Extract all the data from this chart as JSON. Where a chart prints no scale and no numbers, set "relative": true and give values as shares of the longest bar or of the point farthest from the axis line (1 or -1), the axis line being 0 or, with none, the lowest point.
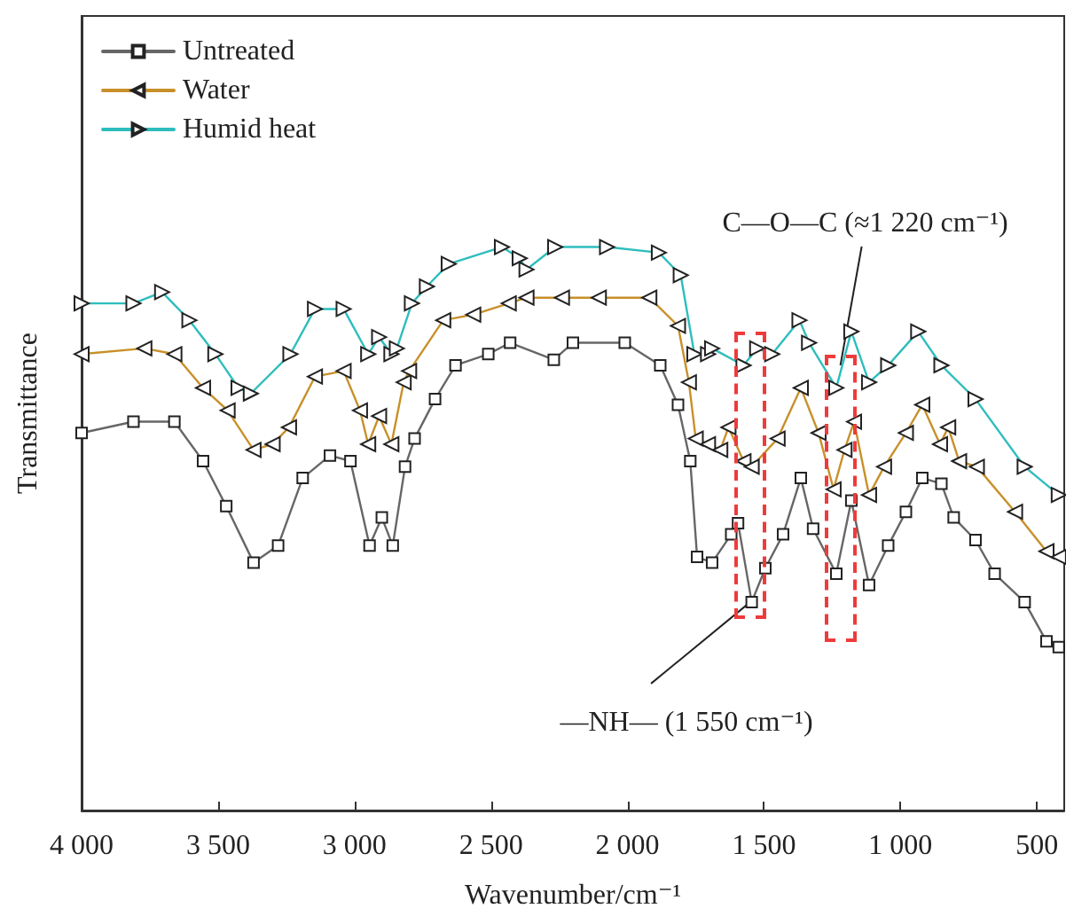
{
  "chart_data": {
    "type": "line",
    "relative": true,
    "xlabel": "Wavenumber/cm⁻¹",
    "ylabel": "Transmittance",
    "xlim": [
      4000,
      400
    ],
    "xticks": [
      {
        "value": 4000,
        "label": "4 000"
      },
      {
        "value": 3500,
        "label": "3 500"
      },
      {
        "value": 3000,
        "label": "3 000"
      },
      {
        "value": 2500,
        "label": "2 500"
      },
      {
        "value": 2000,
        "label": "2 000"
      },
      {
        "value": 1500,
        "label": "1 500"
      },
      {
        "value": 1000,
        "label": "1 000"
      },
      500
    ],
    "tick_labels": "x",
    "grid": false,
    "legend": "top left",
    "line_style": "solid",
    "series": [
      {
        "name": "Untreated",
        "color": "#666666",
        "marker": "square",
        "x": [
          4000,
          3810,
          3660,
          3555,
          3470,
          3370,
          3280,
          3190,
          3090,
          3015,
          2945,
          2900,
          2860,
          2815,
          2780,
          2705,
          2630,
          2510,
          2430,
          2270,
          2200,
          2010,
          1880,
          1815,
          1770,
          1745,
          1690,
          1620,
          1595,
          1545,
          1495,
          1430,
          1365,
          1320,
          1235,
          1180,
          1115,
          1045,
          980,
          920,
          850,
          805,
          725,
          655,
          545,
          465,
          420
        ],
        "values": [
          0.67,
          0.69,
          0.69,
          0.62,
          0.54,
          0.44,
          0.47,
          0.59,
          0.63,
          0.62,
          0.47,
          0.52,
          0.47,
          0.61,
          0.66,
          0.73,
          0.79,
          0.81,
          0.83,
          0.8,
          0.83,
          0.83,
          0.79,
          0.72,
          0.62,
          0.45,
          0.44,
          0.49,
          0.51,
          0.37,
          0.43,
          0.49,
          0.59,
          0.5,
          0.42,
          0.55,
          0.4,
          0.47,
          0.53,
          0.59,
          0.58,
          0.52,
          0.48,
          0.42,
          0.37,
          0.3,
          0.29
        ]
      },
      {
        "name": "Water",
        "color": "#c8902a",
        "marker": "triangle",
        "x": [
          4000,
          3770,
          3660,
          3555,
          3465,
          3370,
          3300,
          3240,
          3145,
          3040,
          2980,
          2950,
          2910,
          2865,
          2820,
          2800,
          2675,
          2565,
          2435,
          2370,
          2240,
          2105,
          1920,
          1815,
          1775,
          1750,
          1705,
          1660,
          1630,
          1575,
          1545,
          1450,
          1365,
          1300,
          1245,
          1205,
          1170,
          1115,
          1060,
          980,
          920,
          855,
          825,
          785,
          720,
          580,
          465,
          420
        ],
        "values": [
          0.81,
          0.82,
          0.81,
          0.75,
          0.71,
          0.64,
          0.65,
          0.68,
          0.77,
          0.78,
          0.71,
          0.65,
          0.7,
          0.65,
          0.76,
          0.78,
          0.87,
          0.88,
          0.9,
          0.91,
          0.91,
          0.91,
          0.91,
          0.86,
          0.76,
          0.66,
          0.65,
          0.64,
          0.68,
          0.62,
          0.61,
          0.66,
          0.75,
          0.67,
          0.57,
          0.64,
          0.69,
          0.56,
          0.61,
          0.67,
          0.72,
          0.65,
          0.68,
          0.62,
          0.61,
          0.53,
          0.46,
          0.45
        ]
      },
      {
        "name": "Humid heat",
        "color": "#2ebdbd",
        "marker": "triangle",
        "x": [
          4000,
          3810,
          3705,
          3605,
          3510,
          3425,
          3380,
          3235,
          3145,
          3040,
          2950,
          2910,
          2865,
          2845,
          2790,
          2735,
          2655,
          2460,
          2395,
          2370,
          2265,
          2075,
          1885,
          1805,
          1755,
          1705,
          1690,
          1575,
          1525,
          1470,
          1370,
          1335,
          1235,
          1180,
          1115,
          1045,
          935,
          850,
          725,
          545,
          420
        ],
        "values": [
          0.9,
          0.9,
          0.92,
          0.87,
          0.81,
          0.75,
          0.74,
          0.81,
          0.89,
          0.89,
          0.81,
          0.84,
          0.81,
          0.82,
          0.9,
          0.93,
          0.97,
          1.0,
          0.98,
          0.96,
          1.0,
          1.0,
          0.99,
          0.95,
          0.81,
          0.81,
          0.82,
          0.79,
          0.82,
          0.81,
          0.87,
          0.83,
          0.75,
          0.85,
          0.76,
          0.79,
          0.85,
          0.79,
          0.73,
          0.61,
          0.56
        ]
      }
    ],
    "annotations": [
      {
        "text": "C—O—C (≈1 220 cm⁻¹)",
        "x": 1220,
        "y": 0.79
      },
      {
        "text": "—NH— (1 550 cm⁻¹)",
        "x": 1550,
        "y": 0.37
      }
    ]
  }
}
